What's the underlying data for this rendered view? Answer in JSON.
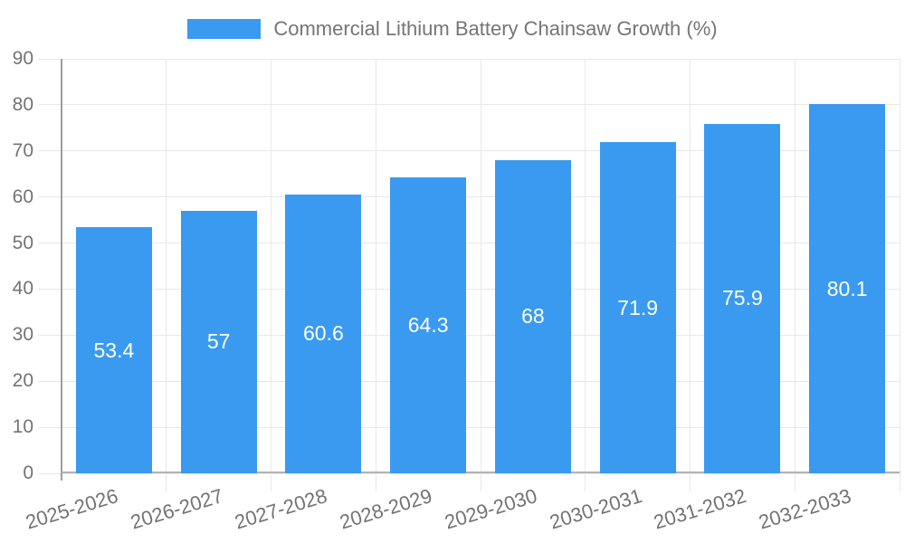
{
  "legend": {
    "series_label": "Commercial Lithium Battery Chainsaw Growth (%)"
  },
  "chart_data": {
    "type": "bar",
    "title": "Commercial Lithium Battery Chainsaw Growth (%)",
    "categories": [
      "2025-2026",
      "2026-2027",
      "2027-2028",
      "2028-2029",
      "2029-2030",
      "2030-2031",
      "2031-2032",
      "2032-2033"
    ],
    "values": [
      53.4,
      57,
      60.6,
      64.3,
      68,
      71.9,
      75.9,
      80.1
    ],
    "value_labels": [
      "53.4",
      "57",
      "60.6",
      "64.3",
      "68",
      "71.9",
      "75.9",
      "80.1"
    ],
    "ytick_labels": [
      "0",
      "10",
      "20",
      "30",
      "40",
      "50",
      "60",
      "70",
      "80",
      "90"
    ],
    "xlabel": "",
    "ylabel": "",
    "ylim": [
      0,
      90
    ],
    "ytick_step": 10,
    "grid": true,
    "legend_position": "top",
    "colors": {
      "bar": "#3a9af0",
      "grid": "#e8e8e8",
      "y_axis": "#9e9e9e",
      "x_axis": "#b3b3b3",
      "tick_text": "#737373",
      "title_text": "#757575",
      "value_label": "#ffffff",
      "background": "#ffffff"
    }
  }
}
